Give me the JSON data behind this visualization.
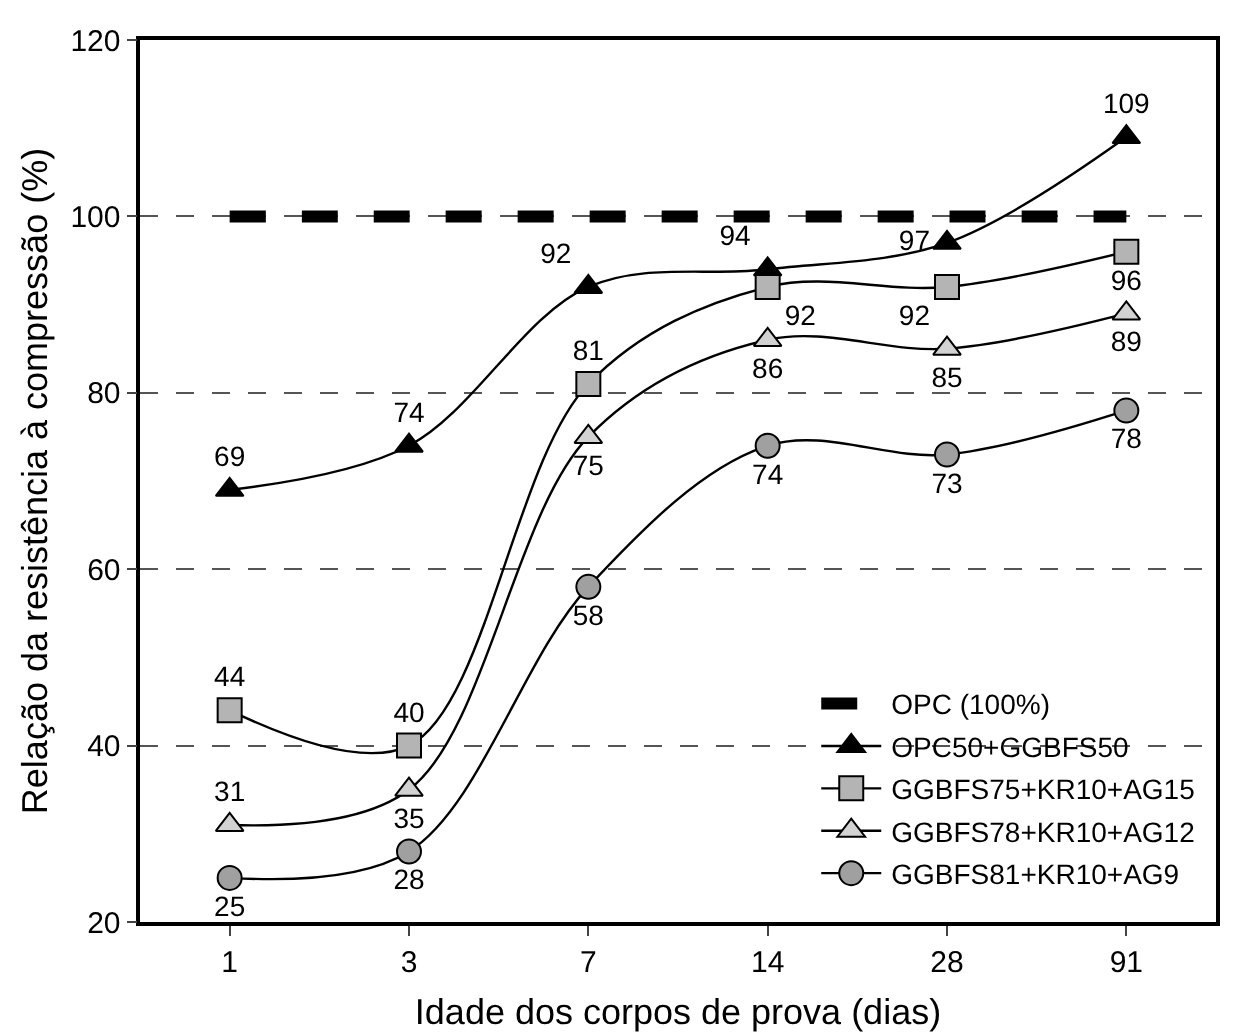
{
  "chart_data": {
    "type": "line",
    "xlabel": "Idade dos corpos de prova (dias)",
    "ylabel": "Relação da resistência à compressão (%)",
    "categories": [
      "1",
      "3",
      "7",
      "14",
      "28",
      "91"
    ],
    "ylim": [
      20,
      120
    ],
    "yticks": [
      20,
      40,
      60,
      80,
      100,
      120
    ],
    "grid": "y",
    "legend": "bottom right",
    "series": [
      {
        "name": "OPC (100%)",
        "color": "#000000",
        "values": [
          100,
          100,
          100,
          100,
          100,
          100
        ],
        "marker": "none",
        "line_style": "dashed"
      },
      {
        "name": "OPC50+GGBFS50",
        "color": "#000000",
        "values": [
          69,
          74,
          92,
          94,
          97,
          109
        ],
        "value_labels": [
          "69",
          "74",
          "92",
          "94",
          "97",
          "109"
        ],
        "marker": "triangle",
        "line_style": "solid"
      },
      {
        "name": "GGBFS75+KR10+AG15",
        "color": "#b4b4b4",
        "values": [
          44,
          40,
          81,
          92,
          92,
          96
        ],
        "value_labels": [
          "44",
          "40",
          "81",
          "92",
          "92",
          "96"
        ],
        "marker": "square",
        "line_style": "solid"
      },
      {
        "name": "GGBFS78+KR10+AG12",
        "color": "#d2d2d2",
        "values": [
          31,
          35,
          75,
          86,
          85,
          89
        ],
        "value_labels": [
          "31",
          "35",
          "75",
          "86",
          "85",
          "89"
        ],
        "marker": "triangle",
        "line_style": "solid"
      },
      {
        "name": "GGBFS81+KR10+AG9",
        "color": "#a0a0a0",
        "values": [
          25,
          28,
          58,
          74,
          73,
          78
        ],
        "value_labels": [
          "25",
          "28",
          "58",
          "74",
          "73",
          "78"
        ],
        "marker": "circle",
        "line_style": "solid"
      }
    ]
  }
}
